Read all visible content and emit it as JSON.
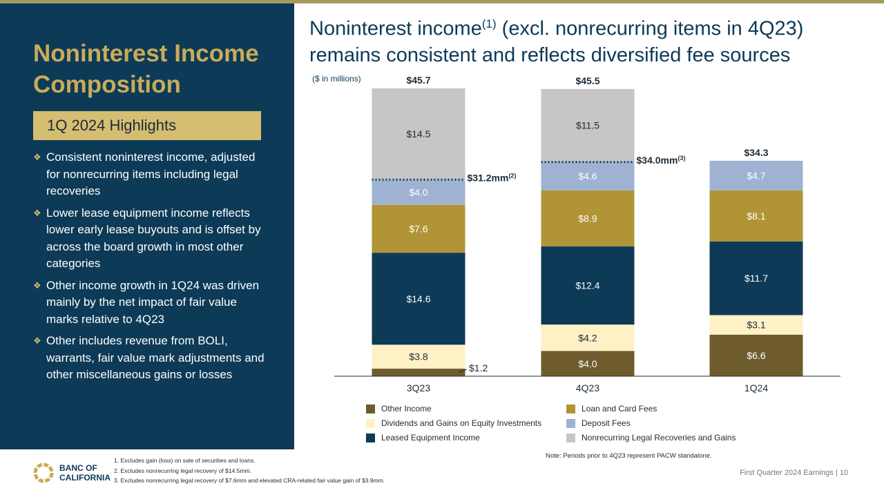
{
  "sidebar": {
    "title": "Noninterest Income Composition",
    "highlights_label": "1Q 2024 Highlights",
    "bullets": [
      "Consistent noninterest income, adjusted for nonrecurring items including legal recoveries",
      "Lower lease equipment income reflects lower early lease buyouts and is offset by across the board growth in most other categories",
      "Other income growth in 1Q24 was driven mainly by the net impact of fair value marks relative to 4Q23",
      "Other includes revenue from BOLI, warrants, fair value mark adjustments and other miscellaneous gains or losses"
    ]
  },
  "header": {
    "title_part1": "Noninterest income",
    "title_sup": "(1)",
    "title_part2": " (excl. nonrecurring items in 4Q23) remains consistent and reflects diversified fee sources"
  },
  "units_label": "($ in millions)",
  "chart_data": {
    "type": "bar",
    "stacked": true,
    "categories": [
      "3Q23",
      "4Q23",
      "1Q24"
    ],
    "series": [
      {
        "name": "Other Income",
        "color": "#6f5c2e",
        "text_color": "#ffffff",
        "values": [
          1.2,
          4.0,
          6.6
        ],
        "labels": [
          "$1.2",
          "$4.0",
          "$6.6"
        ]
      },
      {
        "name": "Dividends  and Gains on Equity Investments",
        "color": "#fdf1c5",
        "text_color": "#1c2a36",
        "values": [
          3.8,
          4.2,
          3.1
        ],
        "labels": [
          "$3.8",
          "$4.2",
          "$3.1"
        ]
      },
      {
        "name": "Leased Equipment Income",
        "color": "#0d3a57",
        "text_color": "#ffffff",
        "values": [
          14.6,
          12.4,
          11.7
        ],
        "labels": [
          "$14.6",
          "$12.4",
          "$11.7"
        ]
      },
      {
        "name": "Loan and Card Fees",
        "color": "#b09436",
        "text_color": "#ffffff",
        "values": [
          7.6,
          8.9,
          8.1
        ],
        "labels": [
          "$7.6",
          "$8.9",
          "$8.1"
        ]
      },
      {
        "name": "Deposit Fees",
        "color": "#9fb2d1",
        "text_color": "#ffffff",
        "values": [
          4.0,
          4.6,
          4.7
        ],
        "labels": [
          "$4.0",
          "$4.6",
          "$4.7"
        ]
      },
      {
        "name": "Nonrecurring  Legal Recoveries  and Gains",
        "color": "#c6c6c6",
        "text_color": "#1c2a36",
        "values": [
          14.5,
          11.5,
          0
        ],
        "labels": [
          "$14.5",
          "$11.5",
          ""
        ]
      }
    ],
    "totals": [
      "$45.7",
      "$45.5",
      "$34.3"
    ],
    "adjusted_markers": [
      {
        "category": "3Q23",
        "value": 31.2,
        "label": "$31.2mm",
        "sup": "(2)"
      },
      {
        "category": "4Q23",
        "value": 34.0,
        "label": "$34.0mm",
        "sup": "(3)"
      }
    ],
    "legend_order": [
      0,
      3,
      1,
      4,
      2,
      5
    ],
    "ylim": [
      0,
      45.7
    ]
  },
  "footnotes": [
    "1.  Excludes gain (loss) on sale of securities and loans.",
    "2.  Excludes nonrecurring legal recovery of $14.5mm.",
    "3.  Excludes nonrecurring legal recovery of $7.6mm and elevated CRA-related fair value gain of $3.9mm."
  ],
  "note": "Note: Periods prior to 4Q23 represent PACW standalone.",
  "footer": "First Quarter 2024 Earnings |  10",
  "logo": {
    "text_line1": "BANC OF",
    "text_line2": "CALIFORNIA"
  }
}
